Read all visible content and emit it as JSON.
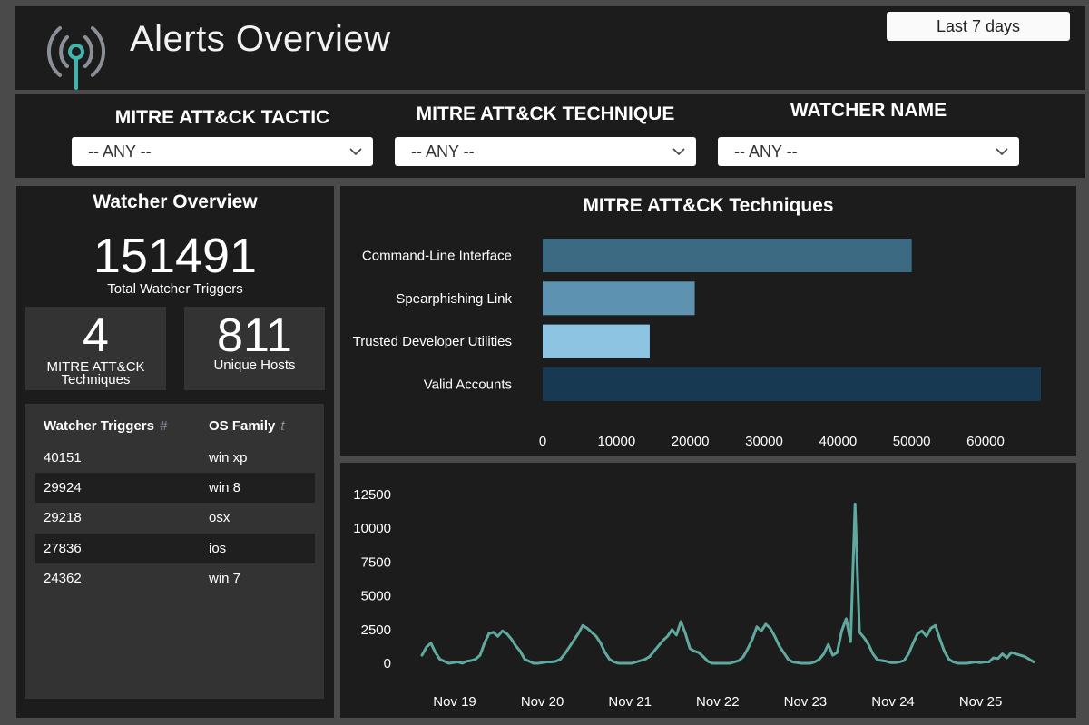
{
  "header": {
    "title": "Alerts Overview",
    "date_range": "Last 7 days",
    "logo_icon": "broadcast-antenna-icon"
  },
  "filters": [
    {
      "label": "MITRE ATT&CK TACTIC",
      "value": "-- ANY --"
    },
    {
      "label": "MITRE ATT&CK TECHNIQUE",
      "value": "-- ANY --"
    },
    {
      "label": "WATCHER NAME",
      "value": "-- ANY --"
    }
  ],
  "watcher_overview": {
    "title": "Watcher Overview",
    "total_triggers": "151491",
    "total_triggers_label": "Total Watcher Triggers",
    "techniques_count": "4",
    "techniques_label_line1": "MITRE ATT&CK",
    "techniques_label_line2": "Techniques",
    "unique_hosts": "811",
    "unique_hosts_label": "Unique Hosts",
    "table": {
      "columns": [
        {
          "label": "Watcher Triggers",
          "sort_icon": "#"
        },
        {
          "label": "OS Family",
          "sort_icon": "t"
        }
      ],
      "rows": [
        [
          "40151",
          "win xp"
        ],
        [
          "29924",
          "win 8"
        ],
        [
          "29218",
          "osx"
        ],
        [
          "27836",
          "ios"
        ],
        [
          "24362",
          "win 7"
        ]
      ]
    }
  },
  "chart_data": [
    {
      "type": "bar",
      "orientation": "horizontal",
      "title": "MITRE ATT&CK Techniques",
      "categories": [
        "Command-Line Interface",
        "Spearphishing Link",
        "Trusted Developer Utilities",
        "Valid Accounts"
      ],
      "values": [
        50000,
        20600,
        14500,
        67500
      ],
      "colors": [
        "#3b6a82",
        "#5d93b0",
        "#8cc4e2",
        "#173a52"
      ],
      "xticks": [
        0,
        10000,
        20000,
        30000,
        40000,
        50000,
        60000
      ],
      "xlim": [
        0,
        67500
      ],
      "grid": false
    },
    {
      "type": "line",
      "color": "#5fa99e",
      "xticks": [
        "Nov 19",
        "Nov 20",
        "Nov 21",
        "Nov 22",
        "Nov 23",
        "Nov 24",
        "Nov 25"
      ],
      "yticks": [
        0,
        2500,
        5000,
        7500,
        10000,
        12500
      ],
      "ylim": [
        0,
        12500
      ],
      "x_start": "Nov 18 12:00",
      "x_end": "Nov 25 18:00",
      "values": [
        600,
        1200,
        1500,
        800,
        300,
        150,
        0,
        50,
        100,
        0,
        150,
        200,
        300,
        600,
        1500,
        2200,
        2300,
        2000,
        2400,
        2200,
        1800,
        1300,
        900,
        300,
        150,
        0,
        0,
        50,
        100,
        100,
        150,
        300,
        700,
        1200,
        1700,
        2200,
        2800,
        2600,
        2300,
        2000,
        1500,
        800,
        300,
        100,
        0,
        0,
        0,
        0,
        100,
        200,
        300,
        500,
        900,
        1300,
        1700,
        2000,
        2500,
        2100,
        3100,
        2200,
        1100,
        900,
        800,
        500,
        150,
        0,
        0,
        0,
        0,
        0,
        100,
        200,
        500,
        1100,
        1800,
        2700,
        2400,
        2900,
        2600,
        2000,
        1300,
        800,
        300,
        100,
        50,
        0,
        0,
        0,
        100,
        300,
        700,
        1400,
        600,
        800,
        2400,
        3300,
        1600,
        11800,
        2300,
        1900,
        1400,
        700,
        250,
        200,
        150,
        50,
        50,
        100,
        200,
        700,
        1500,
        2200,
        2400,
        2000,
        2600,
        2800,
        1800,
        900,
        300,
        100,
        0,
        0,
        0,
        50,
        100,
        50,
        100,
        100,
        400,
        350,
        700,
        400,
        800,
        700,
        600,
        500,
        300,
        100
      ]
    }
  ]
}
